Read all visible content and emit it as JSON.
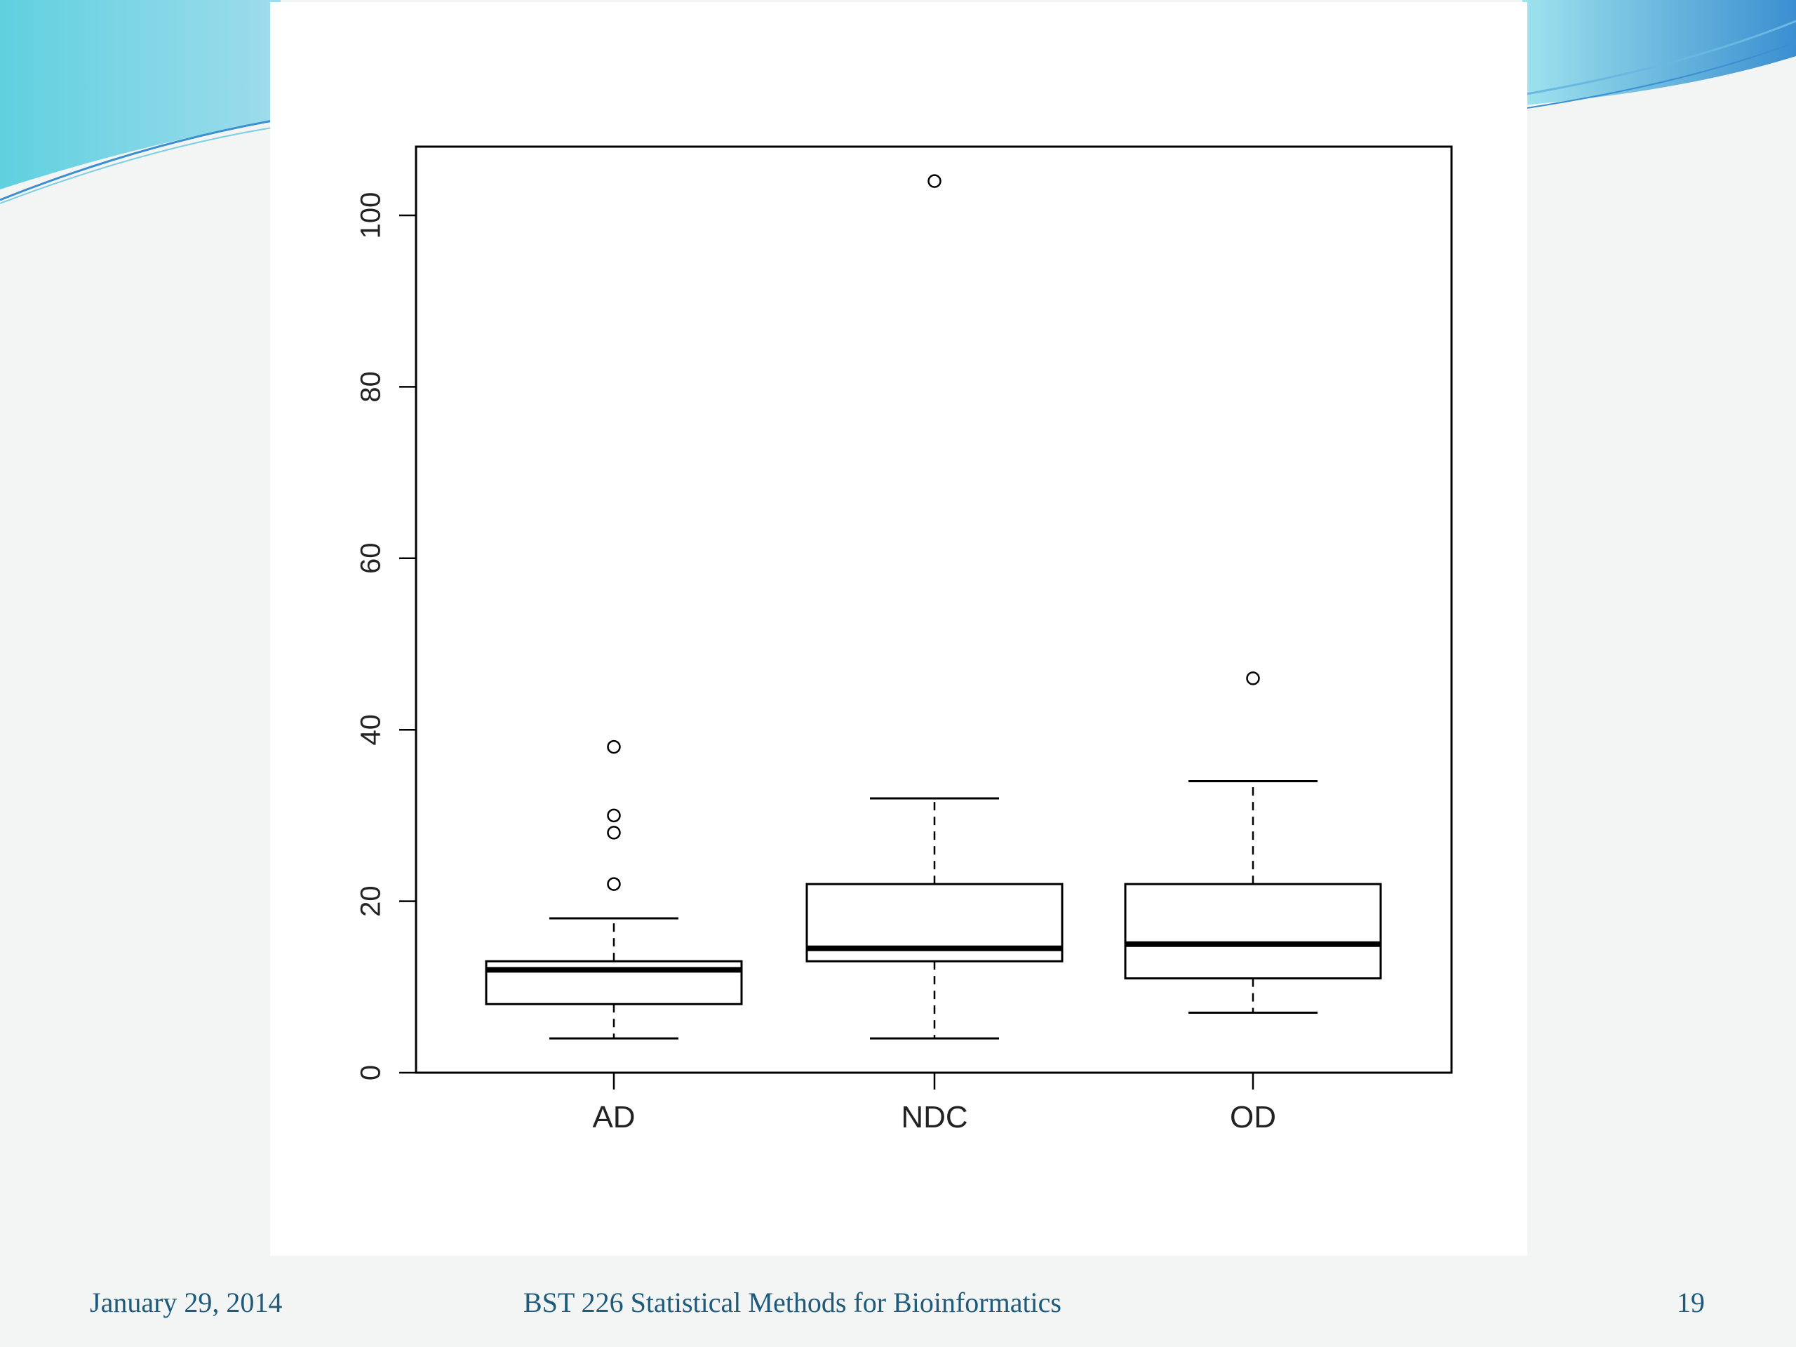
{
  "colors": {
    "accent_teal": "#5fd0df",
    "accent_blue": "#3a8fd0",
    "footer_text": "#1e5a7a",
    "plot_ink": "#000000"
  },
  "footer": {
    "date": "January 29, 2014",
    "course": "BST 226 Statistical Methods for Bioinformatics",
    "page": "19"
  },
  "chart_data": {
    "type": "boxplot",
    "title": "",
    "xlabel": "",
    "ylabel": "",
    "ylim": [
      0,
      104
    ],
    "yticks": [
      0,
      20,
      40,
      60,
      80,
      100
    ],
    "ytick_labels": [
      "0",
      "20",
      "40",
      "60",
      "80",
      "100"
    ],
    "grid": false,
    "categories": [
      "AD",
      "NDC",
      "OD"
    ],
    "boxes": [
      {
        "label": "AD",
        "whisker_low": 4,
        "q1": 8,
        "median": 12,
        "q3": 13,
        "whisker_high": 18,
        "outliers": [
          22,
          28,
          30,
          38
        ]
      },
      {
        "label": "NDC",
        "whisker_low": 4,
        "q1": 13,
        "median": 14.5,
        "q3": 22,
        "whisker_high": 32,
        "outliers": [
          104
        ]
      },
      {
        "label": "OD",
        "whisker_low": 7,
        "q1": 11,
        "median": 15,
        "q3": 22,
        "whisker_high": 34,
        "outliers": [
          46
        ]
      }
    ]
  }
}
